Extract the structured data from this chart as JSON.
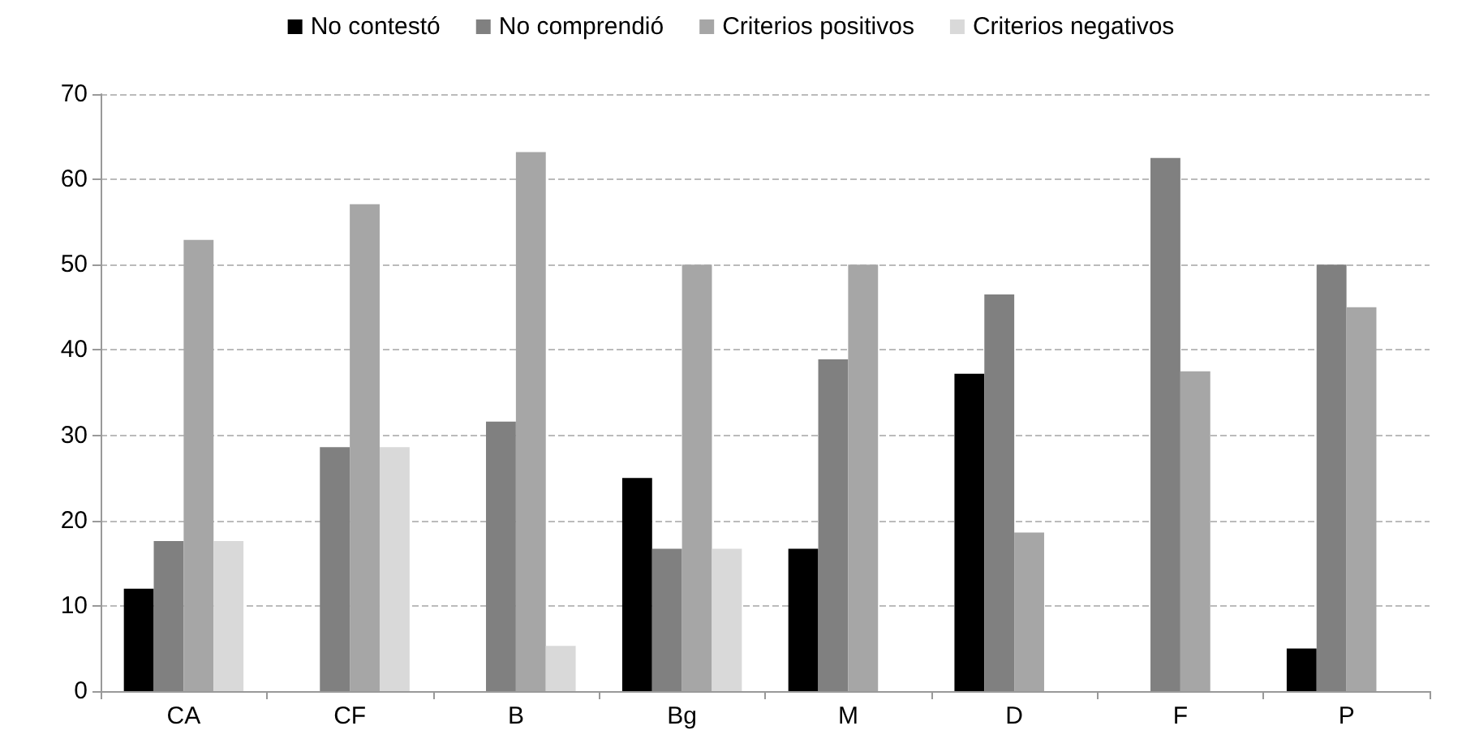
{
  "chart_data": {
    "type": "bar",
    "categories": [
      "CA",
      "CF",
      "B",
      "Bg",
      "M",
      "D",
      "F",
      "P"
    ],
    "series": [
      {
        "name": "No contestó",
        "color": "#000000",
        "values": [
          12,
          0,
          0,
          25,
          16.7,
          37.2,
          0,
          5
        ]
      },
      {
        "name": "No comprendió",
        "color": "#808080",
        "values": [
          17.6,
          28.6,
          31.6,
          16.7,
          38.9,
          46.5,
          62.5,
          50
        ]
      },
      {
        "name": "Criterios positivos",
        "color": "#a6a6a6",
        "values": [
          52.9,
          57.1,
          63.2,
          50,
          50,
          18.6,
          37.5,
          45
        ]
      },
      {
        "name": "Criterios negativos",
        "color": "#d9d9d9",
        "values": [
          17.6,
          28.6,
          5.3,
          16.7,
          0,
          0,
          0,
          0
        ]
      }
    ],
    "ylim": [
      0,
      70
    ],
    "yticks": [
      0,
      10,
      20,
      30,
      40,
      50,
      60,
      70
    ],
    "grid": "y",
    "legend": "top"
  }
}
